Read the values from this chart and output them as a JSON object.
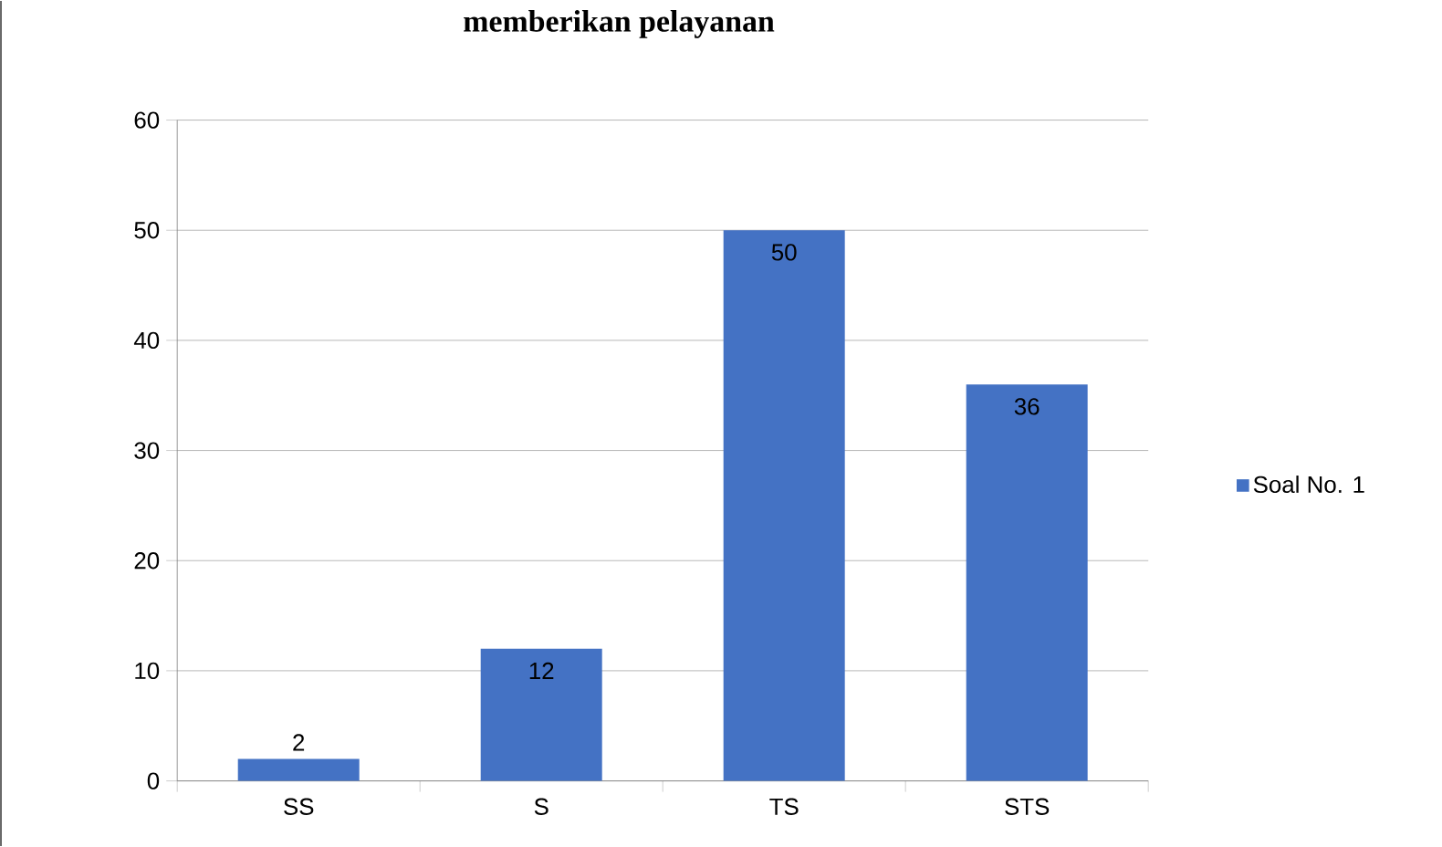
{
  "chart_data": {
    "type": "bar",
    "title": "memberikan pelayanan",
    "categories": [
      "SS",
      "S",
      "TS",
      "STS"
    ],
    "series": [
      {
        "name": "Soal No. 1",
        "color": "#4472c4",
        "values": [
          2,
          12,
          50,
          36
        ]
      }
    ],
    "ylim": [
      0,
      60
    ],
    "yticks": [
      0,
      10,
      20,
      30,
      40,
      50,
      60
    ],
    "grid": "y",
    "legend": "right",
    "data_labels": true
  }
}
